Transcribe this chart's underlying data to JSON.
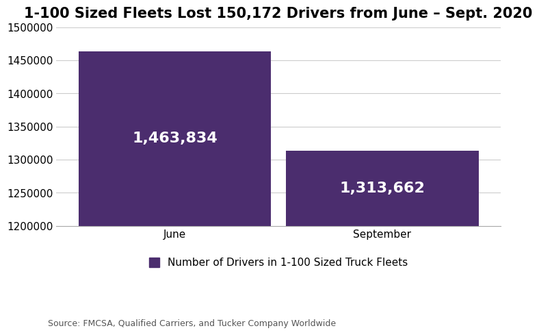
{
  "title": "1-100 Sized Fleets Lost 150,172 Drivers from June – Sept. 2020",
  "categories": [
    "June",
    "September"
  ],
  "values": [
    1463834,
    1313662
  ],
  "bar_labels": [
    "1,463,834",
    "1,313,662"
  ],
  "bar_color": "#4B2D6E",
  "ylim": [
    1200000,
    1500000
  ],
  "yticks": [
    1200000,
    1250000,
    1300000,
    1350000,
    1400000,
    1450000,
    1500000
  ],
  "legend_label": "Number of Drivers in 1-100 Sized Truck Fleets",
  "source_text": "Source: FMCSA, Qualified Carriers, and Tucker Company Worldwide",
  "title_fontsize": 15,
  "tick_fontsize": 11,
  "source_fontsize": 9,
  "legend_fontsize": 11,
  "background_color": "#ffffff",
  "bar_text_color": "#ffffff",
  "bar_text_fontsize": 16,
  "bar_width": 0.65,
  "x_positions": [
    0.3,
    1.0
  ]
}
